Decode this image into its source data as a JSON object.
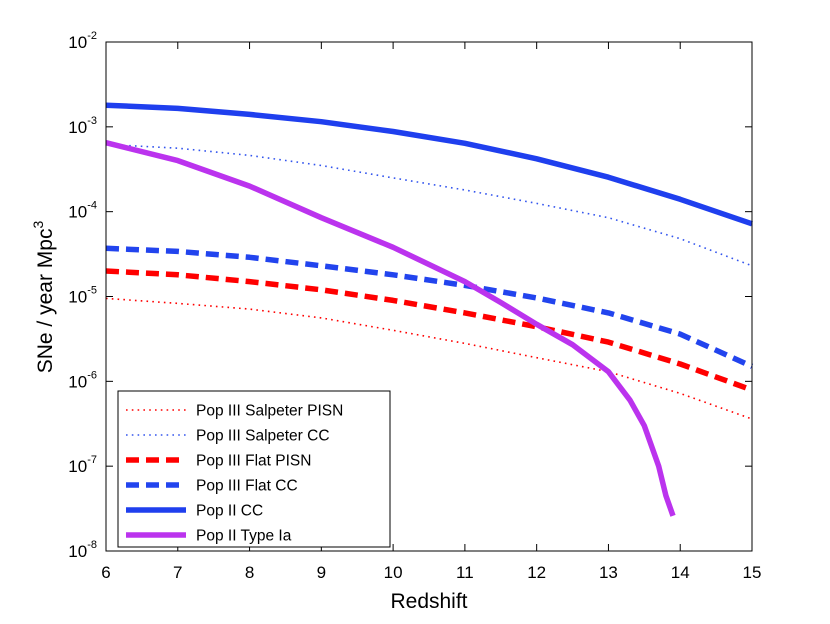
{
  "chart_data": {
    "type": "line",
    "xlabel": "Redshift",
    "ylabel": "SNe / year Mpc",
    "ylabel_superscript": "3",
    "xlim": [
      6,
      15
    ],
    "ylim": [
      1e-08,
      0.01
    ],
    "yscale": "log",
    "grid": false,
    "legend_position": "bottom-left",
    "x_ticks": [
      "6",
      "7",
      "8",
      "9",
      "10",
      "11",
      "12",
      "13",
      "14",
      "15"
    ],
    "y_ticks": [
      {
        "base": "10",
        "exp": "-8"
      },
      {
        "base": "10",
        "exp": "-7"
      },
      {
        "base": "10",
        "exp": "-6"
      },
      {
        "base": "10",
        "exp": "-5"
      },
      {
        "base": "10",
        "exp": "-4"
      },
      {
        "base": "10",
        "exp": "-3"
      },
      {
        "base": "10",
        "exp": "-2"
      }
    ],
    "series": [
      {
        "name": "Pop III Salpeter PISN",
        "color": "#ff0000",
        "style": "dotted",
        "x": [
          6,
          7,
          8,
          9,
          10,
          11,
          12,
          13,
          14,
          15
        ],
        "y": [
          9.5e-06,
          8.3e-06,
          7.1e-06,
          5.6e-06,
          4e-06,
          2.8e-06,
          1.9e-06,
          1.3e-06,
          7.2e-07,
          3.6e-07
        ]
      },
      {
        "name": "Pop III Salpeter CC",
        "color": "#3355ee",
        "style": "dotted",
        "x": [
          6,
          7,
          8,
          9,
          10,
          11,
          12,
          13,
          14,
          15
        ],
        "y": [
          0.00062,
          0.00056,
          0.00046,
          0.00035,
          0.00025,
          0.00018,
          0.000125,
          8.5e-05,
          4.8e-05,
          2.3e-05
        ]
      },
      {
        "name": "Pop III Flat PISN",
        "color": "#ff0000",
        "style": "dashed",
        "x": [
          6,
          7,
          8,
          9,
          10,
          11,
          12,
          13,
          14,
          15
        ],
        "y": [
          2e-05,
          1.8e-05,
          1.5e-05,
          1.2e-05,
          9e-06,
          6.4e-06,
          4.4e-06,
          2.9e-06,
          1.6e-06,
          7.9e-07
        ]
      },
      {
        "name": "Pop III Flat CC",
        "color": "#2244ee",
        "style": "dashed",
        "x": [
          6,
          7,
          8,
          9,
          10,
          11,
          12,
          13,
          14,
          15
        ],
        "y": [
          3.7e-05,
          3.4e-05,
          2.9e-05,
          2.3e-05,
          1.8e-05,
          1.35e-05,
          9.6e-06,
          6.4e-06,
          3.6e-06,
          1.5e-06
        ]
      },
      {
        "name": "Pop II CC",
        "color": "#1f3fee",
        "style": "solid",
        "x": [
          6,
          7,
          8,
          9,
          10,
          11,
          12,
          13,
          14,
          15
        ],
        "y": [
          0.0018,
          0.00165,
          0.0014,
          0.00115,
          0.00088,
          0.00064,
          0.00042,
          0.000255,
          0.00014,
          7.2e-05
        ]
      },
      {
        "name": "Pop II Type Ia",
        "color": "#bb33ee",
        "style": "solid",
        "x": [
          6,
          7,
          8,
          9,
          10,
          11,
          11.5,
          12,
          12.5,
          13,
          13.3,
          13.5,
          13.7,
          13.8,
          13.9
        ],
        "y": [
          0.00065,
          0.0004,
          0.0002,
          8.5e-05,
          3.8e-05,
          1.5e-05,
          8.5e-06,
          4.7e-06,
          2.7e-06,
          1.3e-06,
          6e-07,
          3e-07,
          1e-07,
          4.5e-08,
          2.6e-08
        ]
      }
    ]
  }
}
